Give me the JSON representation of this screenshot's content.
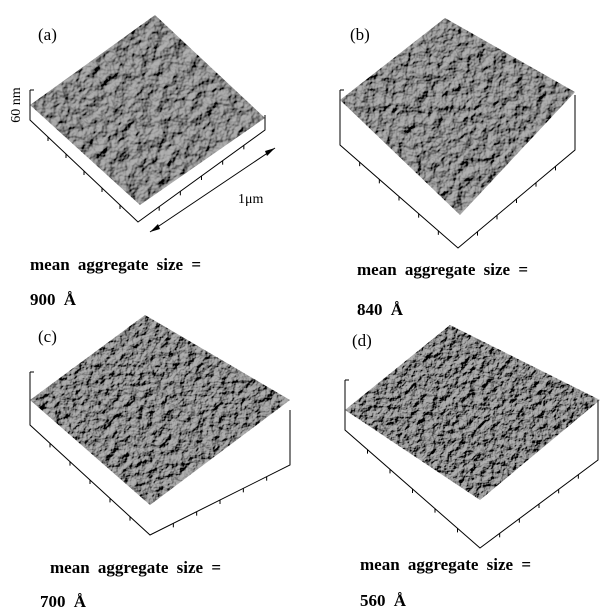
{
  "panels": [
    {
      "label": "(a)",
      "caption": "mean aggregate size =",
      "size": "900 Å",
      "height_label": "60 nm",
      "width_label": "1μm"
    },
    {
      "label": "(b)",
      "caption": "mean aggregate size =",
      "size": "840 Å"
    },
    {
      "label": "(c)",
      "caption": "mean aggregate size =",
      "size": "700 Å"
    },
    {
      "label": "(d)",
      "caption": "mean aggregate size =",
      "size": "560 Å"
    }
  ]
}
